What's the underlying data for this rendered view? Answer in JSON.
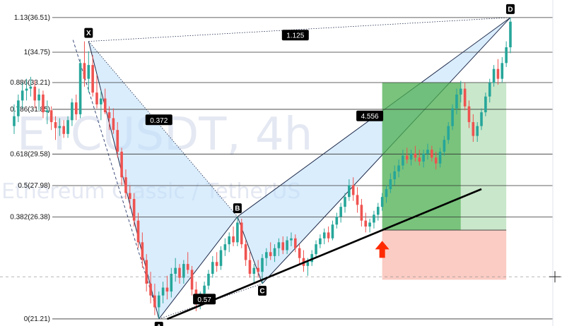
{
  "watermark": {
    "symbol": "ETCUSDT, 4h",
    "description": "Ethereum Classic / TetherUS"
  },
  "chart_data": {
    "type": "candlestick",
    "price_range": [
      20.85,
      37.4
    ],
    "fib_levels": [
      {
        "label": "1.13(36.51)",
        "price": 36.51
      },
      {
        "label": "1(34.75)",
        "price": 34.75
      },
      {
        "label": "0.886(33.21)",
        "price": 33.21
      },
      {
        "label": "0.786(31.85)",
        "price": 31.85
      },
      {
        "label": "0.618(29.58)",
        "price": 29.58
      },
      {
        "label": "0.5(27.98)",
        "price": 27.98
      },
      {
        "label": "0.382(26.38)",
        "price": 26.38
      },
      {
        "label": "0(21.21)",
        "price": 21.21
      }
    ],
    "pattern_points": [
      {
        "label": "X",
        "bar": 18,
        "price": 35.3
      },
      {
        "label": "A",
        "bar": 35,
        "price": 21.21
      },
      {
        "label": "B",
        "bar": 54,
        "price": 26.4
      },
      {
        "label": "C",
        "bar": 60,
        "price": 23.0
      },
      {
        "label": "D",
        "bar": 120,
        "price": 36.51
      }
    ],
    "ratios": [
      {
        "label": "0.372",
        "bar": 35,
        "price": 31.3
      },
      {
        "label": "0.57",
        "bar": 46,
        "price": 22.2
      },
      {
        "label": "1.125",
        "bar": 68,
        "price": 35.6
      },
      {
        "label": "4.556",
        "bar": 86,
        "price": 31.5
      }
    ],
    "trendline": {
      "from": {
        "bar": 37,
        "price": 21.2
      },
      "to": {
        "bar": 113,
        "price": 27.8
      }
    },
    "position": {
      "entry": 25.72,
      "target": 33.21,
      "stop": 23.2,
      "start_bar": 89,
      "end_bar": 119,
      "split_bar": 108
    },
    "arrow": {
      "bar": 89,
      "price": 24.6
    },
    "crosshair": {
      "price": 23.35
    },
    "colors": {
      "up": "#26a69a",
      "down": "#ef5350",
      "pattern_fill": "#bbdefb",
      "profit": "#4caf50",
      "loss": "#f8bbb0",
      "arrow": "#ff2a00"
    },
    "candles": [
      [
        31.0,
        32.1,
        30.6,
        31.5
      ],
      [
        31.5,
        32.6,
        31.2,
        32.3
      ],
      [
        32.3,
        33.2,
        31.9,
        32.8
      ],
      [
        32.8,
        33.4,
        32.3,
        32.9
      ],
      [
        32.9,
        33.5,
        32.5,
        33.0
      ],
      [
        33.0,
        33.3,
        31.9,
        32.3
      ],
      [
        32.3,
        32.9,
        31.8,
        32.6
      ],
      [
        32.6,
        32.8,
        31.4,
        31.7
      ],
      [
        31.7,
        32.3,
        31.1,
        31.8
      ],
      [
        31.8,
        32.0,
        30.8,
        31.2
      ],
      [
        31.2,
        31.5,
        30.3,
        30.9
      ],
      [
        30.9,
        31.4,
        30.5,
        31.0
      ],
      [
        31.0,
        31.3,
        30.4,
        30.6
      ],
      [
        30.6,
        31.5,
        30.4,
        31.3
      ],
      [
        31.3,
        32.4,
        31.0,
        32.2
      ],
      [
        32.2,
        32.6,
        31.3,
        31.6
      ],
      [
        31.6,
        34.4,
        31.4,
        34.2
      ],
      [
        34.2,
        35.3,
        33.0,
        33.4
      ],
      [
        33.4,
        34.8,
        32.7,
        34.1
      ],
      [
        34.1,
        34.6,
        32.5,
        32.7
      ],
      [
        32.7,
        33.6,
        31.9,
        32.1
      ],
      [
        32.1,
        32.8,
        31.3,
        32.4
      ],
      [
        32.4,
        32.9,
        31.6,
        31.7
      ],
      [
        31.7,
        32.0,
        30.8,
        31.4
      ],
      [
        31.4,
        31.9,
        30.6,
        30.8
      ],
      [
        30.8,
        31.2,
        29.4,
        29.7
      ],
      [
        29.7,
        29.9,
        28.0,
        28.4
      ],
      [
        28.4,
        28.8,
        27.3,
        27.6
      ],
      [
        27.6,
        28.0,
        26.8,
        27.3
      ],
      [
        27.3,
        27.6,
        25.9,
        26.2
      ],
      [
        26.2,
        26.6,
        24.8,
        25.1
      ],
      [
        25.1,
        25.6,
        23.8,
        24.2
      ],
      [
        24.2,
        24.5,
        22.6,
        23.0
      ],
      [
        23.0,
        23.6,
        22.0,
        22.4
      ],
      [
        22.4,
        23.0,
        21.4,
        21.8
      ],
      [
        21.8,
        22.6,
        21.21,
        22.4
      ],
      [
        22.4,
        23.1,
        22.0,
        22.8
      ],
      [
        22.8,
        23.4,
        22.2,
        22.6
      ],
      [
        22.6,
        23.8,
        22.3,
        23.5
      ],
      [
        23.5,
        24.3,
        23.1,
        23.8
      ],
      [
        23.8,
        24.0,
        23.0,
        23.3
      ],
      [
        23.3,
        24.2,
        23.0,
        24.0
      ],
      [
        24.0,
        24.6,
        23.5,
        23.7
      ],
      [
        23.7,
        23.9,
        22.4,
        22.7
      ],
      [
        22.7,
        23.1,
        21.6,
        22.0
      ],
      [
        22.0,
        22.6,
        21.7,
        22.5
      ],
      [
        22.5,
        23.1,
        22.1,
        22.9
      ],
      [
        22.9,
        23.7,
        22.7,
        23.5
      ],
      [
        23.5,
        24.4,
        23.3,
        24.1
      ],
      [
        24.1,
        24.6,
        23.6,
        23.9
      ],
      [
        23.9,
        24.9,
        23.7,
        24.7
      ],
      [
        24.7,
        25.3,
        24.4,
        25.0
      ],
      [
        25.0,
        25.6,
        24.6,
        25.4
      ],
      [
        25.4,
        25.9,
        24.9,
        25.1
      ],
      [
        25.1,
        26.4,
        24.9,
        26.1
      ],
      [
        26.1,
        26.3,
        24.8,
        25.0
      ],
      [
        25.0,
        25.2,
        23.9,
        24.2
      ],
      [
        24.2,
        24.6,
        23.3,
        23.5
      ],
      [
        23.5,
        24.0,
        23.0,
        23.8
      ],
      [
        23.8,
        24.2,
        23.3,
        23.6
      ],
      [
        23.6,
        24.5,
        23.0,
        24.3
      ],
      [
        24.3,
        24.8,
        23.9,
        24.6
      ],
      [
        24.6,
        25.1,
        24.2,
        24.4
      ],
      [
        24.4,
        25.0,
        24.1,
        24.8
      ],
      [
        24.8,
        25.3,
        24.4,
        25.1
      ],
      [
        25.1,
        25.4,
        24.5,
        24.7
      ],
      [
        24.7,
        25.4,
        24.5,
        25.2
      ],
      [
        25.2,
        25.6,
        24.9,
        25.3
      ],
      [
        25.3,
        25.5,
        24.6,
        24.8
      ],
      [
        24.8,
        25.0,
        24.0,
        24.3
      ],
      [
        24.3,
        24.7,
        23.6,
        23.9
      ],
      [
        23.9,
        24.3,
        23.4,
        24.1
      ],
      [
        24.1,
        24.7,
        23.9,
        24.5
      ],
      [
        24.5,
        25.2,
        24.3,
        25.0
      ],
      [
        25.0,
        25.5,
        24.8,
        25.3
      ],
      [
        25.3,
        25.8,
        25.0,
        25.6
      ],
      [
        25.6,
        25.9,
        25.1,
        25.3
      ],
      [
        25.3,
        26.2,
        25.2,
        26.0
      ],
      [
        26.0,
        26.6,
        25.8,
        26.4
      ],
      [
        26.4,
        27.1,
        26.1,
        26.9
      ],
      [
        26.9,
        27.6,
        26.6,
        27.4
      ],
      [
        27.4,
        28.3,
        27.2,
        28.0
      ],
      [
        28.0,
        28.4,
        27.2,
        27.5
      ],
      [
        27.5,
        27.9,
        26.6,
        27.0
      ],
      [
        27.0,
        27.3,
        25.9,
        26.2
      ],
      [
        26.2,
        26.6,
        25.6,
        25.9
      ],
      [
        25.9,
        26.3,
        25.6,
        26.1
      ],
      [
        26.1,
        26.7,
        25.8,
        26.5
      ],
      [
        26.5,
        27.1,
        26.2,
        26.9
      ],
      [
        26.9,
        27.6,
        26.7,
        27.4
      ],
      [
        27.4,
        28.0,
        27.1,
        27.8
      ],
      [
        27.8,
        28.6,
        27.6,
        28.3
      ],
      [
        28.3,
        29.0,
        28.0,
        28.7
      ],
      [
        28.7,
        29.3,
        28.4,
        29.0
      ],
      [
        29.0,
        29.8,
        28.8,
        29.5
      ],
      [
        29.5,
        29.9,
        29.1,
        29.3
      ],
      [
        29.3,
        29.8,
        29.0,
        29.6
      ],
      [
        29.6,
        30.0,
        29.2,
        29.4
      ],
      [
        29.4,
        29.8,
        29.0,
        29.2
      ],
      [
        29.2,
        29.8,
        28.9,
        29.6
      ],
      [
        29.6,
        30.1,
        29.3,
        29.8
      ],
      [
        29.8,
        30.0,
        29.2,
        29.4
      ],
      [
        29.4,
        29.7,
        28.8,
        29.1
      ],
      [
        29.1,
        29.9,
        28.9,
        29.7
      ],
      [
        29.7,
        30.5,
        29.5,
        30.3
      ],
      [
        30.3,
        31.2,
        30.1,
        31.0
      ],
      [
        31.0,
        32.1,
        30.8,
        31.9
      ],
      [
        31.9,
        32.9,
        31.6,
        32.6
      ],
      [
        32.6,
        33.3,
        32.2,
        32.9
      ],
      [
        32.9,
        33.2,
        31.8,
        32.0
      ],
      [
        32.0,
        32.3,
        30.9,
        31.2
      ],
      [
        31.2,
        31.6,
        30.2,
        30.5
      ],
      [
        30.5,
        31.2,
        30.2,
        31.0
      ],
      [
        31.0,
        31.9,
        30.8,
        31.7
      ],
      [
        31.7,
        32.7,
        31.5,
        32.5
      ],
      [
        32.5,
        33.4,
        32.2,
        33.2
      ],
      [
        33.2,
        34.1,
        33.0,
        33.9
      ],
      [
        33.9,
        34.4,
        33.1,
        33.4
      ],
      [
        33.4,
        34.5,
        33.2,
        34.2
      ],
      [
        34.2,
        35.3,
        34.0,
        35.0
      ],
      [
        35.0,
        36.51,
        34.7,
        36.3
      ]
    ]
  }
}
